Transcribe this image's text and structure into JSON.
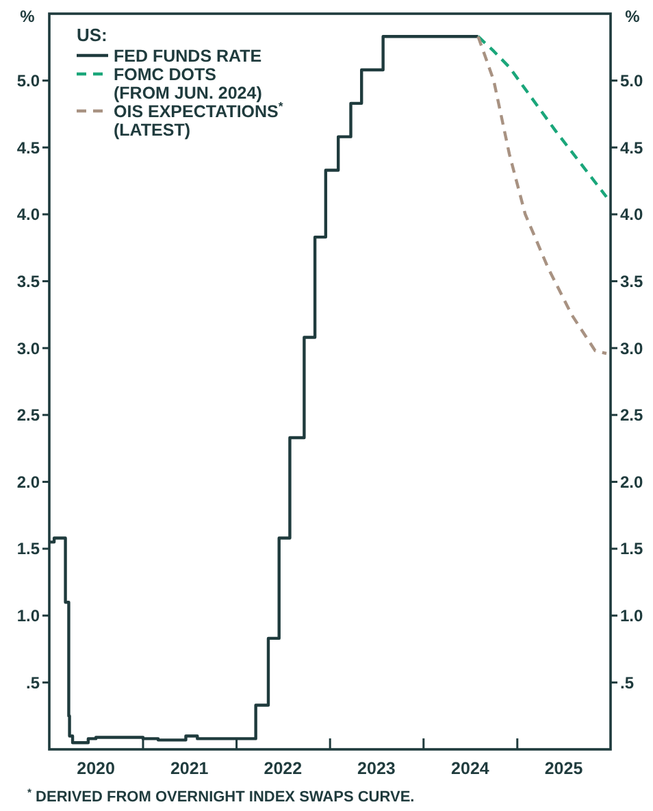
{
  "chart_data": {
    "type": "line",
    "ylabel": "%",
    "y2label": "%",
    "legend_title": "US:",
    "legend": "top left",
    "grid": false,
    "xlim": [
      "2020-01-01",
      "2025-12-31"
    ],
    "xticks": [
      {
        "value": "2020-07-01",
        "label": "2020"
      },
      {
        "value": "2021-01-01",
        "label": null
      },
      {
        "value": "2021-07-01",
        "label": "2021"
      },
      {
        "value": "2022-01-01",
        "label": null
      },
      {
        "value": "2022-07-01",
        "label": "2022"
      },
      {
        "value": "2023-01-01",
        "label": null
      },
      {
        "value": "2023-07-01",
        "label": "2023"
      },
      {
        "value": "2024-01-01",
        "label": null
      },
      {
        "value": "2024-07-01",
        "label": "2024"
      },
      {
        "value": "2025-01-01",
        "label": null
      },
      {
        "value": "2025-07-01",
        "label": "2025"
      }
    ],
    "ylim": [
      0,
      5.5
    ],
    "yticks": [
      {
        "value": 0.5,
        "label": ".5"
      },
      {
        "value": 1,
        "label": "1.0"
      },
      {
        "value": 1.5,
        "label": "1.5"
      },
      {
        "value": 2,
        "label": "2.0"
      },
      {
        "value": 2.5,
        "label": "2.5"
      },
      {
        "value": 3,
        "label": "3.0"
      },
      {
        "value": 3.5,
        "label": "3.5"
      },
      {
        "value": 4,
        "label": "4.0"
      },
      {
        "value": 4.5,
        "label": "4.5"
      },
      {
        "value": 5,
        "label": "5.0"
      }
    ],
    "y2lim": [
      0,
      5.5
    ],
    "y2ticks": [
      {
        "value": 0.5,
        "label": ".5"
      },
      {
        "value": 1,
        "label": "1.0"
      },
      {
        "value": 1.5,
        "label": "1.5"
      },
      {
        "value": 2,
        "label": "2.0"
      },
      {
        "value": 2.5,
        "label": "2.5"
      },
      {
        "value": 3,
        "label": "3.0"
      },
      {
        "value": 3.5,
        "label": "3.5"
      },
      {
        "value": 4,
        "label": "4.0"
      },
      {
        "value": 4.5,
        "label": "4.5"
      },
      {
        "value": 5,
        "label": "5.0"
      }
    ],
    "series": [
      {
        "name": "FED FUNDS RATE",
        "type": "step",
        "color": "#1f3b3d",
        "line_style": "solid",
        "x": [
          "2020-01-01",
          "2020-01-20",
          "2020-03-04",
          "2020-03-17",
          "2020-03-20",
          "2020-04-01",
          "2020-06-01",
          "2020-07-01",
          "2020-10-01",
          "2021-01-01",
          "2021-03-01",
          "2021-06-17",
          "2021-08-01",
          "2022-03-17",
          "2022-05-05",
          "2022-06-16",
          "2022-07-28",
          "2022-09-22",
          "2022-11-03",
          "2022-12-15",
          "2023-02-02",
          "2023-03-23",
          "2023-05-04",
          "2023-07-27",
          "2024-08-01"
        ],
        "values": [
          1.55,
          1.58,
          1.1,
          0.25,
          0.1,
          0.05,
          0.08,
          0.09,
          0.09,
          0.08,
          0.07,
          0.1,
          0.08,
          0.33,
          0.83,
          1.58,
          2.33,
          3.08,
          3.83,
          4.33,
          4.58,
          4.83,
          5.08,
          5.33,
          5.33
        ]
      },
      {
        "name": "FOMC DOTS\n(FROM JUN. 2024)",
        "type": "line",
        "color": "#1aa67a",
        "line_style": "dashed",
        "x": [
          "2024-08-01",
          "2024-10-01",
          "2024-12-01",
          "2025-06-01",
          "2025-12-15"
        ],
        "values": [
          5.33,
          5.22,
          5.1,
          4.62,
          4.13
        ]
      },
      {
        "name": "OIS EXPECTATIONS$^{*}$\n(LATEST)",
        "type": "line",
        "color": "#a89282",
        "line_style": "dashed",
        "x": [
          "2024-08-01",
          "2024-10-01",
          "2024-12-01",
          "2025-02-01",
          "2025-05-01",
          "2025-08-01",
          "2025-11-01",
          "2025-12-15"
        ],
        "values": [
          5.33,
          5.0,
          4.45,
          4.0,
          3.6,
          3.25,
          2.98,
          2.96
        ]
      }
    ],
    "annotations": [
      "$^{*}$ DERIVED FROM OVERNIGHT INDEX SWAPS CURVE."
    ]
  }
}
